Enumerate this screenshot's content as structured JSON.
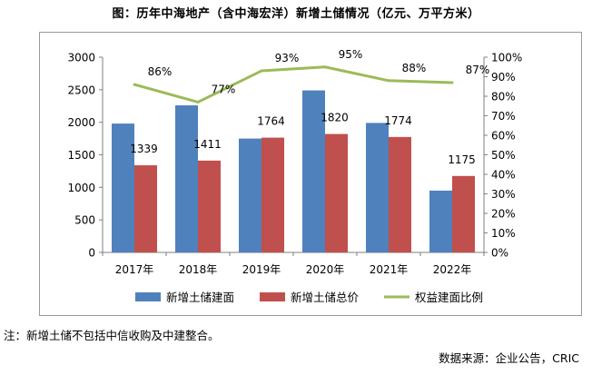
{
  "title": "图：历年中海地产（含中海宏洋）新增土储情况（亿元、万平方米）",
  "note": "注：新增土储不包括中信收购及中建整合。",
  "source": "数据来源：企业公告，CRIC",
  "chart_data": {
    "type": "bar",
    "categories": [
      "2017年",
      "2018年",
      "2019年",
      "2020年",
      "2021年",
      "2022年"
    ],
    "series": [
      {
        "name": "新增土储建面",
        "type": "bar",
        "axis": "left",
        "color": "#4f81bd",
        "values": [
          1980,
          2260,
          1750,
          2490,
          1990,
          950
        ],
        "labels": [
          "",
          "",
          "",
          "",
          "",
          ""
        ]
      },
      {
        "name": "新增土储总价",
        "type": "bar",
        "axis": "left",
        "color": "#c0504d",
        "values": [
          1339,
          1411,
          1764,
          1820,
          1774,
          1175
        ],
        "labels": [
          "1339",
          "1411",
          "1764",
          "1820",
          "1774",
          "1175"
        ]
      },
      {
        "name": "权益建面比例",
        "type": "line",
        "axis": "right",
        "color": "#9bbb59",
        "values": [
          86,
          77,
          93,
          95,
          88,
          87
        ],
        "labels": [
          "86%",
          "77%",
          "93%",
          "95%",
          "88%",
          "87%"
        ]
      }
    ],
    "y_left": {
      "min": 0,
      "max": 3000,
      "ticks": [
        "0",
        "500",
        "1000",
        "1500",
        "2000",
        "2500",
        "3000"
      ]
    },
    "y_right": {
      "min": 0,
      "max": 100,
      "ticks": [
        "0%",
        "10%",
        "20%",
        "30%",
        "40%",
        "50%",
        "60%",
        "70%",
        "80%",
        "90%",
        "100%"
      ]
    },
    "legend_position": "bottom",
    "grid": false
  }
}
